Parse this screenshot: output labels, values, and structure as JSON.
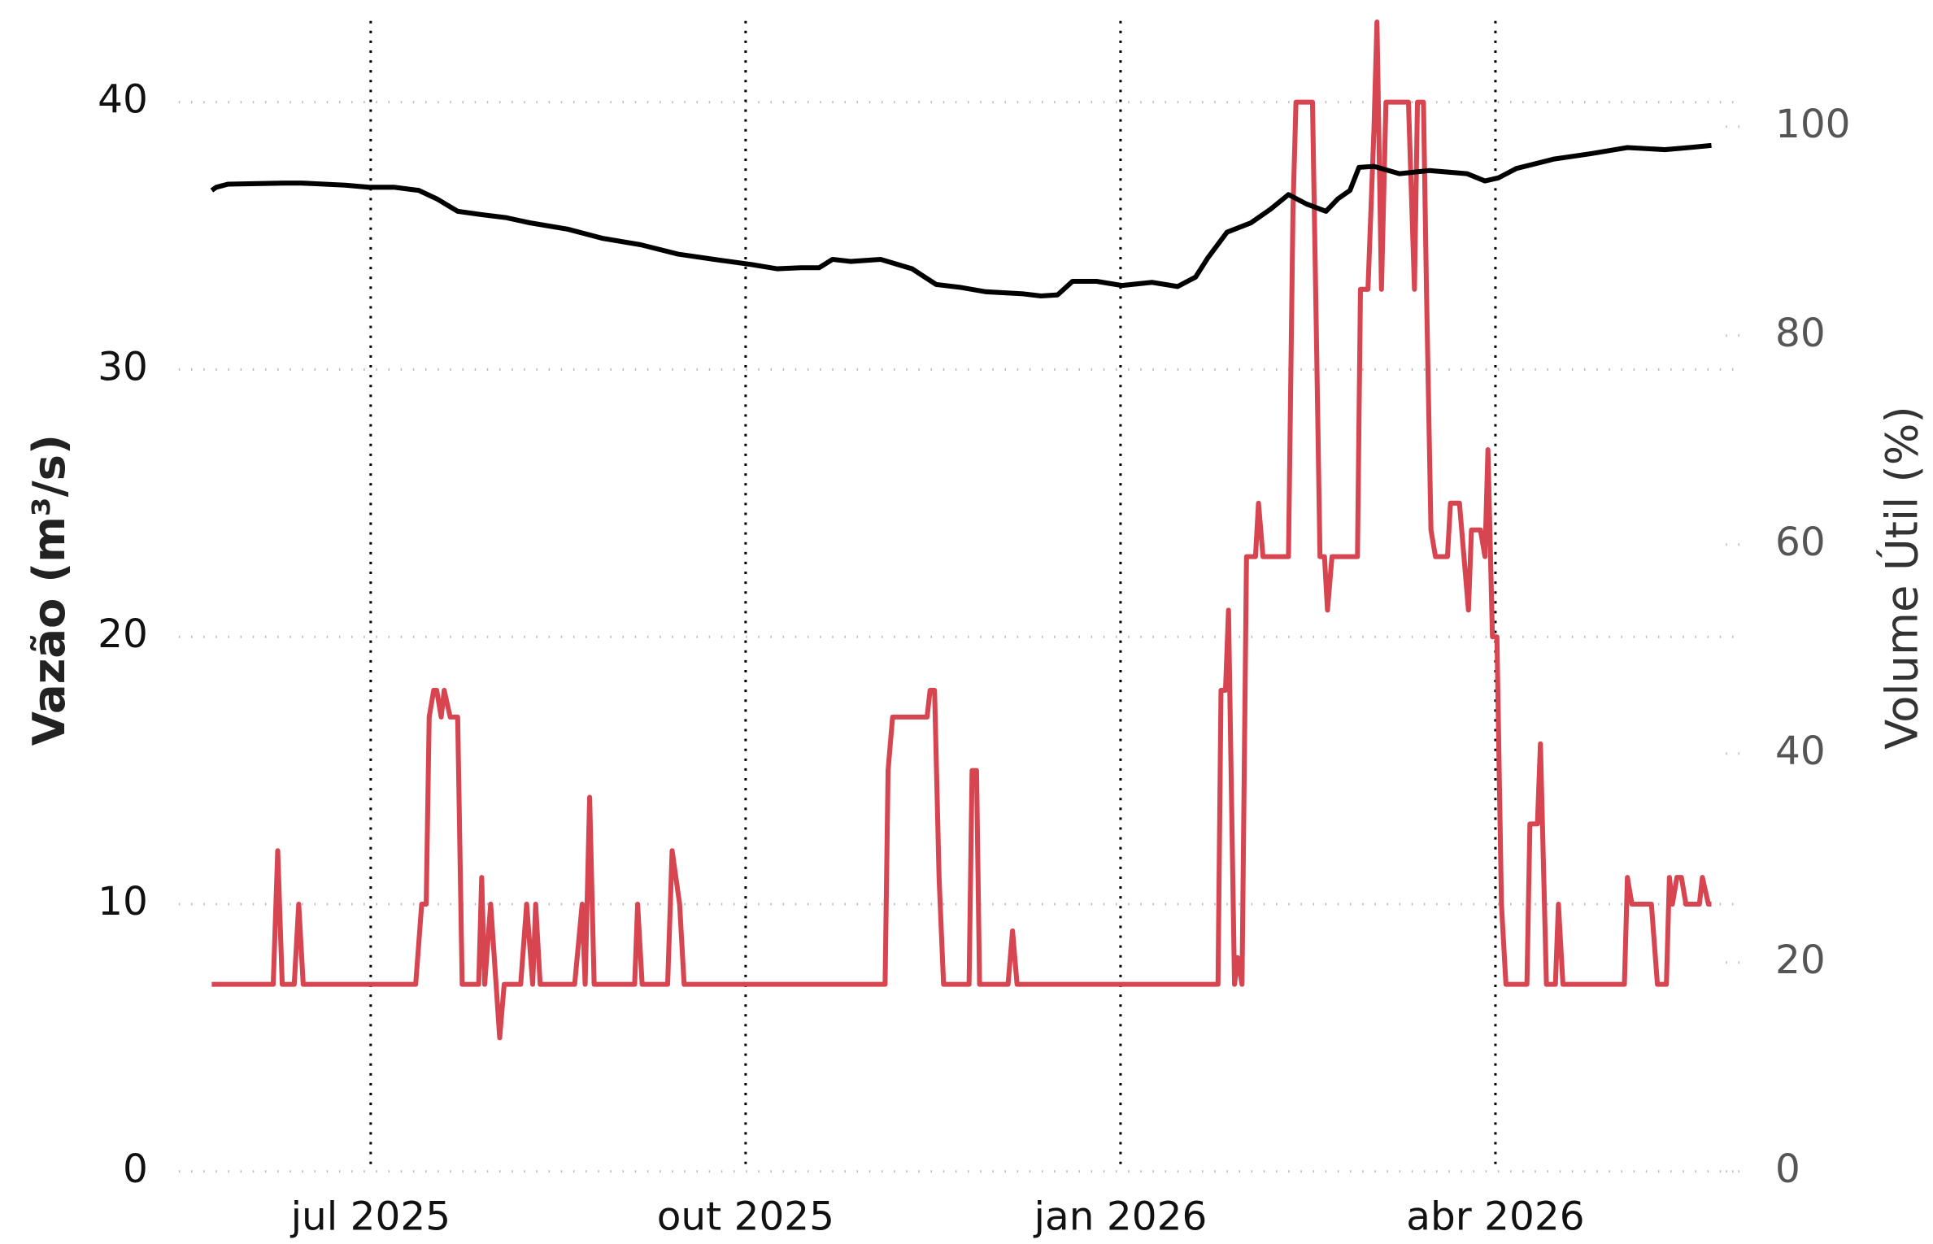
{
  "chart_data": {
    "type": "line",
    "y_label": "Vazão (m³/s)",
    "y2_label": "Volume Útil (%)",
    "xlim": [
      2025.372,
      2026.416
    ],
    "xticks": [
      {
        "value": 2025.5,
        "label": "jul 2025"
      },
      {
        "value": 2025.75,
        "label": "out 2025"
      },
      {
        "value": 2026.0,
        "label": "jan 2026"
      },
      {
        "value": 2026.25,
        "label": "abr 2026"
      }
    ],
    "ylim": [
      0,
      43.5
    ],
    "yticks": [
      0,
      10,
      20,
      30,
      40
    ],
    "y2lim": [
      0,
      111.3
    ],
    "y2ticks": [
      0,
      20,
      40,
      60,
      80,
      100
    ],
    "grid": true,
    "series": [
      {
        "color": "#d64550",
        "x": [
          2025.394,
          2025.435,
          2025.438,
          2025.441,
          2025.449,
          2025.452,
          2025.455,
          2025.53,
          2025.534,
          2025.537,
          2025.539,
          2025.542,
          2025.544,
          2025.547,
          2025.549,
          2025.553,
          2025.558,
          2025.561,
          2025.572,
          2025.574,
          2025.576,
          2025.58,
          2025.586,
          2025.589,
          2025.6,
          2025.604,
          2025.608,
          2025.61,
          2025.613,
          2025.636,
          2025.641,
          2025.643,
          2025.646,
          2025.649,
          2025.676,
          2025.678,
          2025.681,
          2025.698,
          2025.701,
          2025.706,
          2025.709,
          2025.843,
          2025.845,
          2025.848,
          2025.871,
          2025.873,
          2025.876,
          2025.879,
          2025.882,
          2025.899,
          2025.901,
          2025.904,
          2025.906,
          2025.925,
          2025.928,
          2025.931,
          2026.065,
          2026.067,
          2026.07,
          2026.072,
          2026.076,
          2026.078,
          2026.081,
          2026.084,
          2026.09,
          2026.092,
          2026.095,
          2026.112,
          2026.115,
          2026.117,
          2026.128,
          2026.131,
          2026.133,
          2026.136,
          2026.138,
          2026.141,
          2026.158,
          2026.16,
          2026.165,
          2026.169,
          2026.171,
          2026.174,
          2026.177,
          2026.192,
          2026.196,
          2026.198,
          2026.202,
          2026.204,
          2026.207,
          2026.21,
          2026.218,
          2026.22,
          2026.226,
          2026.229,
          2026.232,
          2026.234,
          2026.24,
          2026.243,
          2026.245,
          2026.248,
          2026.251,
          2026.254,
          2026.257,
          2026.271,
          2026.273,
          2026.278,
          2026.28,
          2026.284,
          2026.29,
          2026.292,
          2026.295,
          2026.336,
          2026.338,
          2026.341,
          2026.354,
          2026.358,
          2026.364,
          2026.366,
          2026.368,
          2026.371,
          2026.374,
          2026.377,
          2026.386,
          2026.388,
          2026.392,
          2026.394
        ],
        "values": [
          7,
          7,
          12,
          7,
          7,
          10,
          7,
          7,
          10,
          10,
          17,
          18,
          18,
          17,
          18,
          17,
          17,
          7,
          7,
          11,
          7,
          10,
          5,
          7,
          7,
          10,
          7,
          10,
          7,
          7,
          10,
          7,
          14,
          7,
          7,
          10,
          7,
          7,
          12,
          10,
          7,
          7,
          15,
          17,
          17,
          18,
          18,
          11,
          7,
          7,
          15,
          15,
          7,
          7,
          9,
          7,
          7,
          18,
          18,
          21,
          7,
          8,
          7,
          23,
          23,
          25,
          23,
          23,
          36,
          40,
          40,
          30,
          23,
          23,
          21,
          23,
          23,
          33,
          33,
          39,
          43,
          33,
          40,
          40,
          33,
          40,
          40,
          33,
          24,
          23,
          23,
          25,
          25,
          23,
          21,
          24,
          24,
          23,
          27,
          20,
          20,
          10,
          7,
          7,
          13,
          13,
          16,
          7,
          7,
          10,
          7,
          7,
          11,
          10,
          10,
          7,
          7,
          11,
          10,
          11,
          11,
          10,
          10,
          11,
          10,
          10
        ]
      },
      {
        "color": "#000000",
        "axis": "y2",
        "x": [
          2025.394,
          2025.397,
          2025.405,
          2025.442,
          2025.454,
          2025.483,
          2025.499,
          2025.516,
          2025.532,
          2025.544,
          2025.558,
          2025.573,
          2025.59,
          2025.606,
          2025.631,
          2025.655,
          2025.68,
          2025.705,
          2025.729,
          2025.754,
          2025.771,
          2025.787,
          2025.799,
          2025.808,
          2025.82,
          2025.84,
          2025.861,
          2025.877,
          2025.894,
          2025.91,
          2025.935,
          2025.947,
          2025.958,
          2025.968,
          2025.984,
          2026.001,
          2026.021,
          2026.038,
          2026.05,
          2026.058,
          2026.071,
          2026.087,
          2026.1,
          2026.112,
          2026.124,
          2026.137,
          2026.145,
          2026.153,
          2026.159,
          2026.169,
          2026.186,
          2026.206,
          2026.231,
          2026.243,
          2026.252,
          2026.264,
          2026.289,
          2026.313,
          2026.338,
          2026.363,
          2026.379,
          2026.394
        ],
        "values": [
          93.9,
          94.2,
          94.5,
          94.6,
          94.6,
          94.4,
          94.2,
          94.2,
          93.9,
          93.1,
          91.9,
          91.6,
          91.3,
          90.8,
          90.2,
          89.3,
          88.7,
          87.8,
          87.3,
          86.8,
          86.4,
          86.5,
          86.5,
          87.3,
          87.1,
          87.3,
          86.4,
          84.9,
          84.6,
          84.2,
          84.0,
          83.8,
          83.9,
          85.2,
          85.2,
          84.8,
          85.1,
          84.7,
          85.6,
          87.4,
          89.9,
          90.8,
          92.1,
          93.5,
          92.6,
          91.9,
          93.1,
          93.9,
          96.1,
          96.2,
          95.5,
          95.8,
          95.5,
          94.8,
          95.1,
          96.0,
          96.9,
          97.4,
          98.0,
          97.8,
          98.0,
          98.2
        ]
      }
    ]
  }
}
